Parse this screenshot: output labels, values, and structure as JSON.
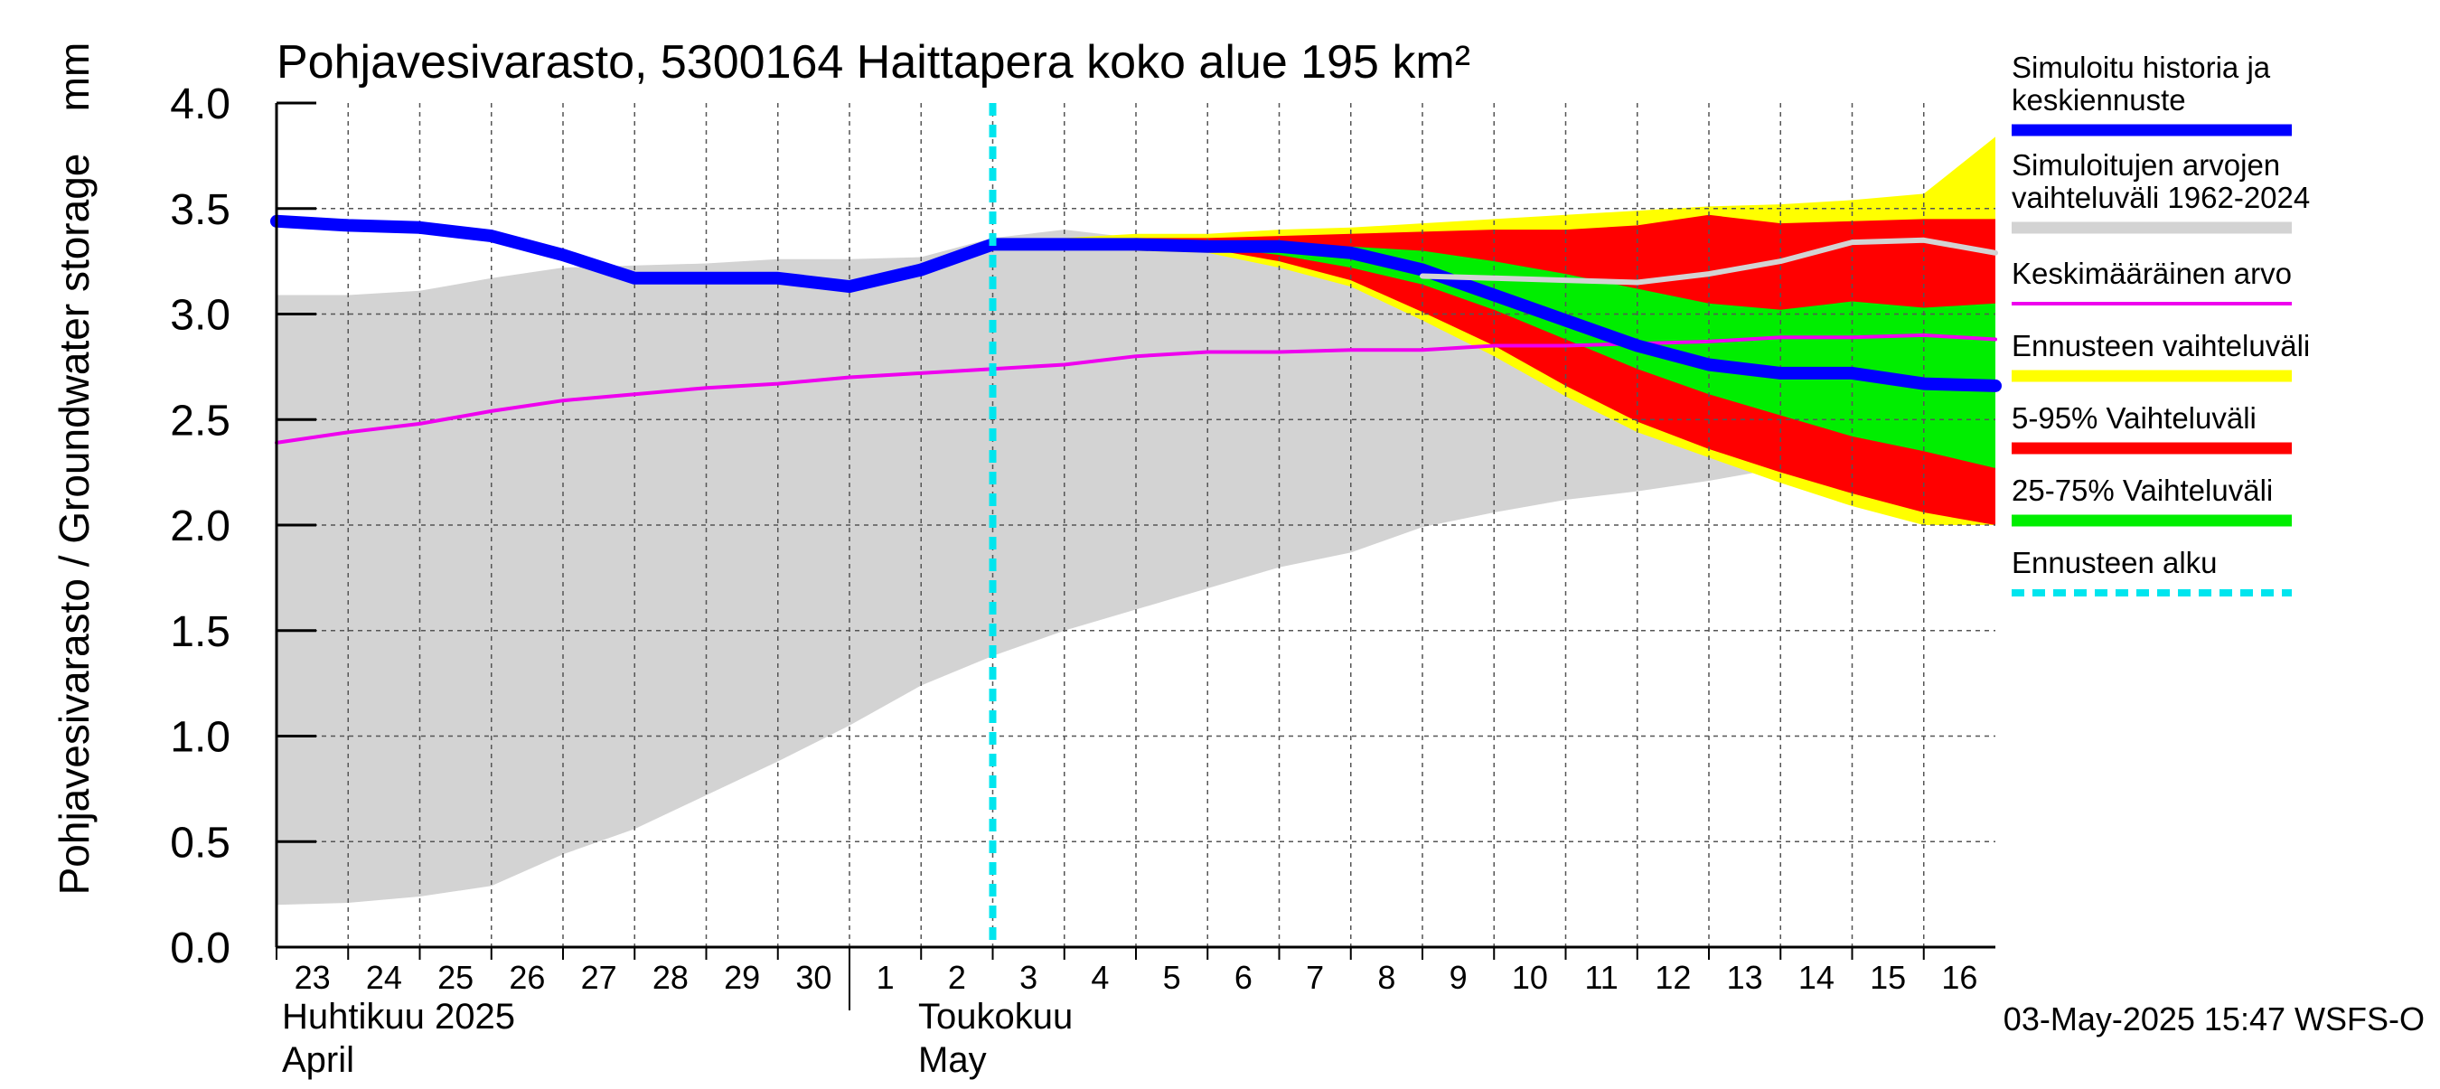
{
  "chart_data": {
    "type": "area",
    "title": "Pohjavesivarasto, 5300164 Haittapera koko alue 195 km²",
    "ylabel": "Pohjavesivarasto / Groundwater storage",
    "yunit": "mm",
    "ylim": [
      0.0,
      4.0
    ],
    "yticks": [
      "0.0",
      "0.5",
      "1.0",
      "1.5",
      "2.0",
      "2.5",
      "3.0",
      "3.5",
      "4.0"
    ],
    "xlim": [
      0,
      24
    ],
    "grid": true,
    "x_tick_labels": [
      "23",
      "24",
      "25",
      "26",
      "27",
      "28",
      "29",
      "30",
      "1",
      "2",
      "3",
      "4",
      "5",
      "6",
      "7",
      "8",
      "9",
      "10",
      "11",
      "12",
      "13",
      "14",
      "15",
      "16"
    ],
    "month_labels": [
      {
        "fi": "Huhtikuu  2025",
        "en": "April"
      },
      {
        "fi": "Toukokuu",
        "en": "May"
      }
    ],
    "forecast_start_x": 10.0,
    "legend_position": "right",
    "timestamp": "03-May-2025 15:47 WSFS-O",
    "series": [
      {
        "name": "Simuloitujen arvojen vaihteluväli 1962-2024",
        "style": "band",
        "color": "#d3d3d3",
        "x": [
          0,
          1,
          2,
          3,
          4,
          5,
          6,
          7,
          8,
          9,
          10,
          11,
          12,
          13,
          14,
          15,
          16,
          17,
          18,
          19,
          20,
          21,
          22,
          23,
          24
        ],
        "upper": [
          3.09,
          3.09,
          3.11,
          3.17,
          3.22,
          3.23,
          3.24,
          3.26,
          3.26,
          3.27,
          3.36,
          3.4,
          3.36,
          3.34,
          3.32,
          3.31,
          3.28,
          3.22,
          3.18,
          3.16,
          3.17,
          3.22,
          3.31,
          3.35,
          3.27
        ],
        "lower": [
          0.2,
          0.21,
          0.24,
          0.29,
          0.44,
          0.56,
          0.72,
          0.88,
          1.05,
          1.24,
          1.38,
          1.5,
          1.6,
          1.7,
          1.8,
          1.87,
          1.99,
          2.06,
          2.12,
          2.16,
          2.21,
          2.27,
          2.34,
          2.28,
          2.17
        ]
      },
      {
        "name": "Ennusteen vaihteluväli",
        "style": "band",
        "color": "#ffff00",
        "x": [
          11,
          12,
          13,
          14,
          15,
          16,
          17,
          18,
          19,
          20,
          21,
          22,
          23,
          24
        ],
        "upper": [
          3.36,
          3.38,
          3.38,
          3.4,
          3.41,
          3.43,
          3.45,
          3.47,
          3.49,
          3.51,
          3.52,
          3.54,
          3.57,
          3.84
        ],
        "lower": [
          3.32,
          3.3,
          3.29,
          3.22,
          3.13,
          2.97,
          2.8,
          2.61,
          2.44,
          2.32,
          2.2,
          2.09,
          2.0,
          2.0
        ]
      },
      {
        "name": "5-95% Vaihteluväli",
        "style": "band",
        "color": "#ff0000",
        "x": [
          11,
          12,
          13,
          14,
          15,
          16,
          17,
          18,
          19,
          20,
          21,
          22,
          23,
          24
        ],
        "upper": [
          3.34,
          3.36,
          3.36,
          3.37,
          3.38,
          3.39,
          3.4,
          3.4,
          3.42,
          3.47,
          3.43,
          3.44,
          3.45,
          3.45
        ],
        "lower": [
          3.33,
          3.32,
          3.31,
          3.25,
          3.16,
          3.01,
          2.85,
          2.66,
          2.49,
          2.36,
          2.25,
          2.15,
          2.06,
          2.0
        ]
      },
      {
        "name": "25-75% Vaihteluväli",
        "style": "band",
        "color": "#00ee00",
        "x": [
          11,
          12,
          13,
          14,
          15,
          16,
          17,
          18,
          19,
          20,
          21,
          22,
          23,
          24
        ],
        "upper": [
          3.33,
          3.34,
          3.34,
          3.33,
          3.32,
          3.3,
          3.25,
          3.19,
          3.12,
          3.05,
          3.02,
          3.06,
          3.03,
          3.05
        ],
        "lower": [
          3.33,
          3.33,
          3.32,
          3.28,
          3.22,
          3.14,
          3.02,
          2.88,
          2.74,
          2.62,
          2.52,
          2.42,
          2.35,
          2.27
        ]
      },
      {
        "name": "Keskimääräinen arvo",
        "style": "line",
        "color": "#ee00ee",
        "x": [
          0,
          1,
          2,
          3,
          4,
          5,
          6,
          7,
          8,
          9,
          10,
          11,
          12,
          13,
          14,
          15,
          16,
          17,
          18,
          19,
          20,
          21,
          22,
          23,
          24
        ],
        "y": [
          2.39,
          2.44,
          2.48,
          2.54,
          2.59,
          2.62,
          2.65,
          2.67,
          2.7,
          2.72,
          2.74,
          2.76,
          2.8,
          2.82,
          2.82,
          2.83,
          2.83,
          2.85,
          2.85,
          2.86,
          2.87,
          2.89,
          2.89,
          2.9,
          2.88
        ]
      },
      {
        "name": "Simuloitu historia ja keskiennuste",
        "style": "line",
        "color": "#0000ff",
        "x": [
          0,
          1,
          2,
          3,
          4,
          5,
          6,
          7,
          8,
          9,
          10,
          11,
          12,
          13,
          14,
          15,
          16,
          17,
          18,
          19,
          20,
          21,
          22,
          23,
          24
        ],
        "y": [
          3.44,
          3.42,
          3.41,
          3.37,
          3.28,
          3.17,
          3.17,
          3.17,
          3.13,
          3.21,
          3.33,
          3.33,
          3.33,
          3.32,
          3.32,
          3.29,
          3.21,
          3.09,
          2.97,
          2.85,
          2.76,
          2.72,
          2.72,
          2.67,
          2.66
        ]
      },
      {
        "name": "",
        "style": "line",
        "color": "#d3d3d3",
        "x": [
          16,
          17,
          18,
          19,
          20,
          21,
          22,
          23,
          24
        ],
        "y": [
          3.18,
          3.17,
          3.16,
          3.15,
          3.19,
          3.25,
          3.34,
          3.35,
          3.29
        ]
      }
    ]
  },
  "legend": [
    {
      "label_lines": [
        "Simuloitu historia ja",
        "keskiennuste"
      ],
      "color": "#0000ff",
      "style": "thick"
    },
    {
      "label_lines": [
        "Simuloitujen arvojen",
        "vaihteluväli 1962-2024"
      ],
      "color": "#d3d3d3",
      "style": "thick"
    },
    {
      "label_lines": [
        "Keskimääräinen arvo"
      ],
      "color": "#ee00ee",
      "style": "thin"
    },
    {
      "label_lines": [
        "Ennusteen vaihteluväli"
      ],
      "color": "#ffff00",
      "style": "thick"
    },
    {
      "label_lines": [
        "5-95% Vaihteluväli"
      ],
      "color": "#ff0000",
      "style": "thick"
    },
    {
      "label_lines": [
        "25-75% Vaihteluväli"
      ],
      "color": "#00ee00",
      "style": "thick"
    },
    {
      "label_lines": [
        "Ennusteen alku"
      ],
      "color": "#00e5ee",
      "style": "dashed"
    }
  ]
}
